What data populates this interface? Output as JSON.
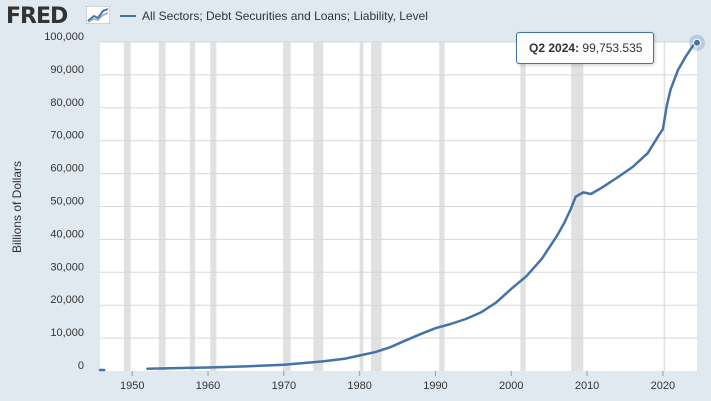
{
  "header": {
    "logo_text": "FRED",
    "logo_icon": "line-graph-icon"
  },
  "tooltip": {
    "date": "Q2 2024:",
    "value": "99,753.535"
  },
  "chart_data": {
    "type": "line",
    "title": "",
    "ylabel": "Billions of Dollars",
    "xlabel": "",
    "xlim": [
      1945.75,
      2024.5
    ],
    "ylim": [
      0,
      100000
    ],
    "x_ticks": [
      "1950",
      "1960",
      "1970",
      "1980",
      "1990",
      "2000",
      "2010",
      "2020"
    ],
    "y_ticks": [
      "0",
      "10,000",
      "20,000",
      "30,000",
      "40,000",
      "50,000",
      "60,000",
      "70,000",
      "80,000",
      "90,000",
      "100,000"
    ],
    "recessions": [
      [
        1948.9,
        1949.8
      ],
      [
        1953.5,
        1954.4
      ],
      [
        1957.6,
        1958.3
      ],
      [
        1960.3,
        1961.1
      ],
      [
        1969.9,
        1970.9
      ],
      [
        1973.9,
        1975.2
      ],
      [
        1980.0,
        1980.5
      ],
      [
        1981.5,
        1982.9
      ],
      [
        1990.5,
        1991.2
      ],
      [
        2001.2,
        2001.9
      ],
      [
        2007.9,
        2009.5
      ],
      [
        2020.1,
        2020.3
      ]
    ],
    "series": [
      {
        "name": "All Sectors; Debt Securities and Loans; Liability, Level",
        "color": "#4572a7",
        "segments": [
          {
            "x": [
              1945.75,
              1946.3
            ],
            "y": [
              300,
              310
            ]
          },
          {
            "x": [
              1952.0,
              1955,
              1960,
              1965,
              1970,
              1975,
              1978,
              1980,
              1982,
              1984,
              1986,
              1988,
              1990,
              1992,
              1994,
              1996,
              1998,
              2000,
              2002,
              2004,
              2006,
              2007,
              2007.9,
              2008.5,
              2009.5,
              2010.5,
              2012,
              2014,
              2016,
              2018,
              2019.5,
              2020.0,
              2020.5,
              2021,
              2022,
              2023,
              2024.0,
              2024.5
            ],
            "y": [
              700,
              850,
              1050,
              1400,
              1900,
              2900,
              3700,
              4700,
              5700,
              7200,
              9200,
              11200,
              13000,
              14300,
              15800,
              17800,
              20800,
              25000,
              28800,
              34000,
              41000,
              45000,
              49500,
              53000,
              54300,
              53800,
              55800,
              58800,
              62000,
              66200,
              71800,
              73500,
              80500,
              85500,
              91500,
              95500,
              99000,
              99753.535
            ]
          }
        ]
      }
    ]
  }
}
